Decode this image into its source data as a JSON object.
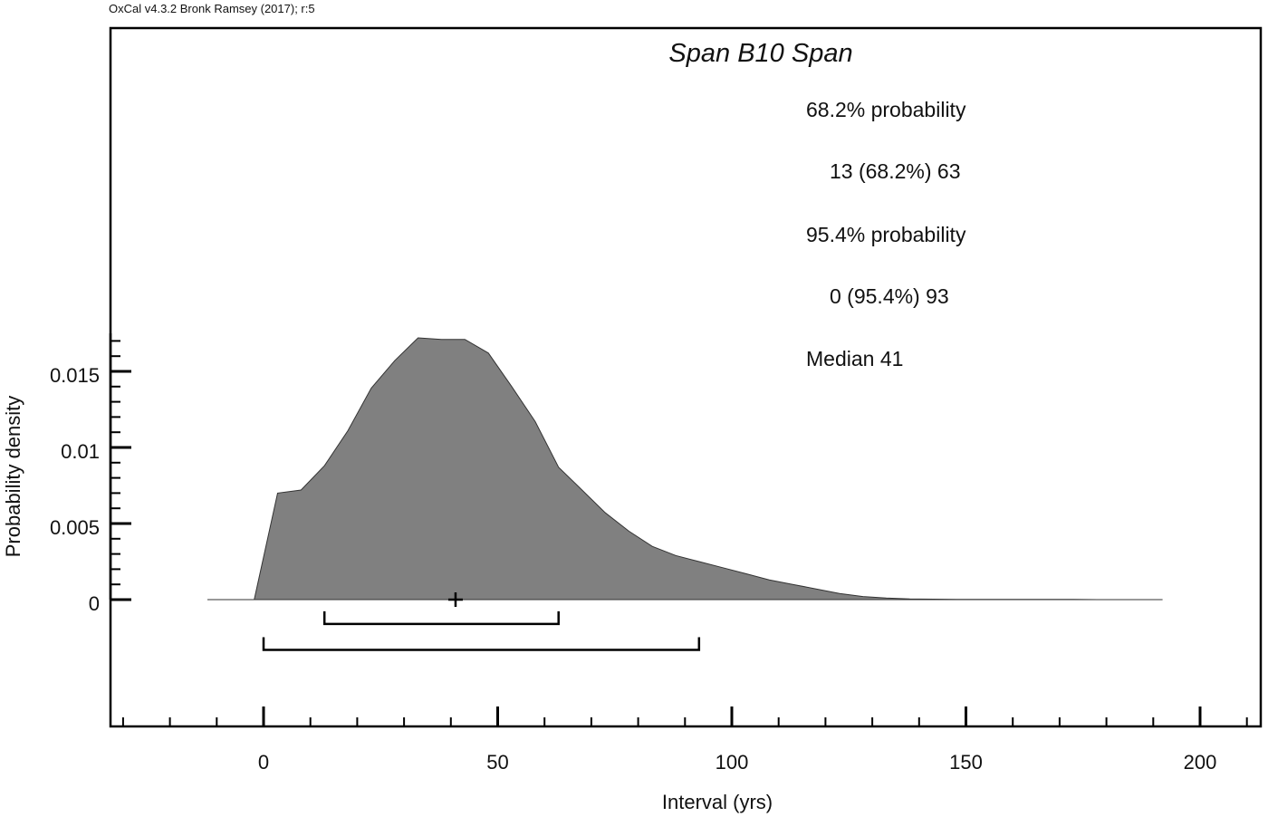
{
  "header": {
    "credit": "OxCal v4.3.2 Bronk Ramsey (2017); r:5"
  },
  "chart_data": {
    "type": "area",
    "title": "Span B10 Span",
    "xlabel": "Interval (yrs)",
    "ylabel": "Probability density",
    "xlim": [
      -33,
      212
    ],
    "ylim": [
      -0.0084,
      0.0175
    ],
    "x_ticks": [
      0,
      50,
      100,
      150,
      200
    ],
    "x_tick_labels": [
      "0",
      "50",
      "100",
      "150",
      "200"
    ],
    "y_ticks": [
      0,
      0.005,
      0.01,
      0.015
    ],
    "y_tick_labels": [
      "0",
      "0.005",
      "0.01",
      "0.015"
    ],
    "grid": false,
    "legend": "none",
    "fill_color": "#808080",
    "series": [
      {
        "x": [
          -12,
          -2,
          3,
          8,
          13,
          18,
          23,
          28,
          33,
          38,
          43,
          48,
          53,
          58,
          63,
          68,
          73,
          78,
          83,
          88,
          93,
          98,
          103,
          108,
          113,
          118,
          123,
          128,
          133,
          138,
          143,
          148,
          153,
          158,
          163,
          168,
          173,
          178,
          183,
          188,
          192
        ],
        "y": [
          0,
          0,
          0.007,
          0.0072,
          0.0088,
          0.0111,
          0.0139,
          0.0157,
          0.0172,
          0.0171,
          0.0171,
          0.0162,
          0.014,
          0.0117,
          0.0087,
          0.0072,
          0.0057,
          0.0045,
          0.0035,
          0.0029,
          0.0025,
          0.0021,
          0.0017,
          0.0013,
          0.001,
          0.0007,
          0.0004,
          0.0002,
          0.0001,
          5e-05,
          3e-05,
          2e-05,
          2e-05,
          2e-05,
          2e-05,
          1e-05,
          1e-05,
          0.0,
          0.0,
          0.0,
          0
        ]
      }
    ],
    "median": 41,
    "ranges": [
      {
        "probability": "68.2% probability",
        "from": 13,
        "to": 63,
        "text": "13 (68.2%) 63",
        "y": -0.0016
      },
      {
        "probability": "95.4% probability",
        "from": 0,
        "to": 93,
        "text": "0 (95.4%) 93",
        "y": -0.0033
      }
    ],
    "annotations": {
      "p68_label": "68.2% probability",
      "p68_range": "13 (68.2%) 63",
      "p95_label": "95.4% probability",
      "p95_range": "0 (95.4%) 93",
      "median": "Median 41"
    }
  }
}
